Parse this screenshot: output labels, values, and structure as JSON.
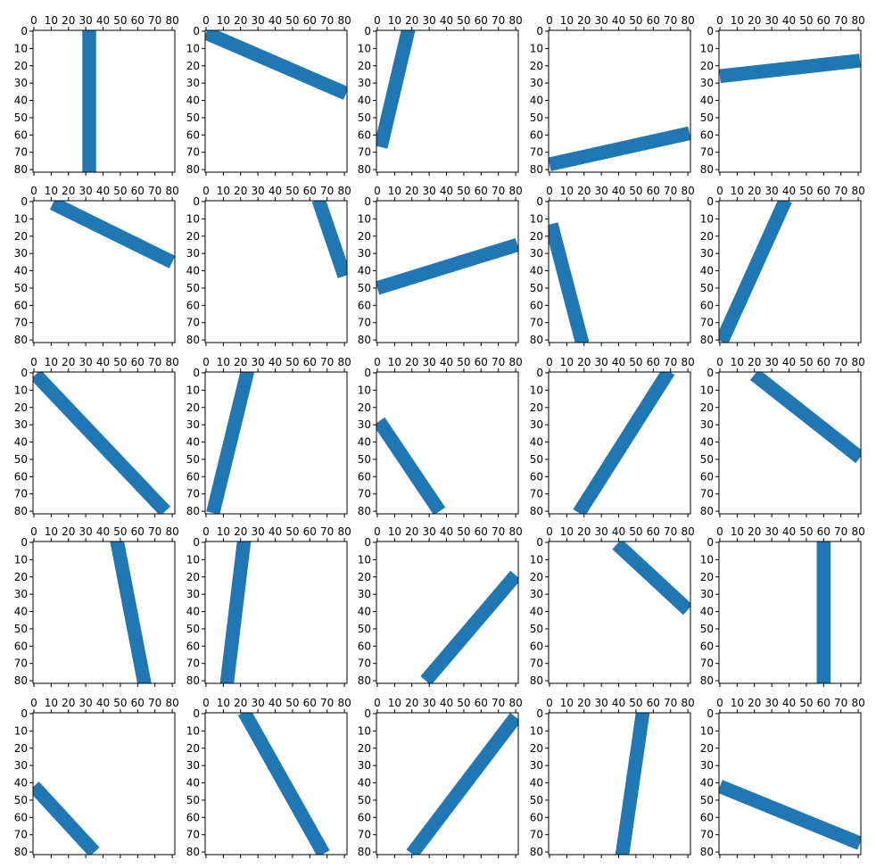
{
  "chart_data": {
    "type": "image-grid",
    "rows": 5,
    "cols": 5,
    "ticks": [
      "0",
      "10",
      "20",
      "30",
      "40",
      "50",
      "60",
      "70",
      "80"
    ],
    "tick_values": [
      0,
      10,
      20,
      30,
      40,
      50,
      60,
      70,
      80
    ],
    "xlim": [
      -0.5,
      81.5
    ],
    "ylim": [
      81.5,
      -0.5
    ],
    "x_axis_position": "top",
    "bottom_tick_labels": false,
    "grid": false,
    "line_color": "#1f77b4",
    "stroke_width_data_units": 8,
    "panels": [
      {
        "row": 0,
        "col": 0,
        "p1": [
          32,
          -1
        ],
        "p2": [
          32,
          82
        ]
      },
      {
        "row": 0,
        "col": 1,
        "p1": [
          0,
          1
        ],
        "p2": [
          81,
          36
        ]
      },
      {
        "row": 0,
        "col": 2,
        "p1": [
          18,
          -1
        ],
        "p2": [
          2,
          67
        ]
      },
      {
        "row": 0,
        "col": 3,
        "p1": [
          0,
          77
        ],
        "p2": [
          81,
          59
        ]
      },
      {
        "row": 0,
        "col": 4,
        "p1": [
          0,
          26
        ],
        "p2": [
          81,
          17
        ]
      },
      {
        "row": 1,
        "col": 0,
        "p1": [
          11,
          1
        ],
        "p2": [
          80,
          35
        ]
      },
      {
        "row": 1,
        "col": 1,
        "p1": [
          65,
          -1
        ],
        "p2": [
          80,
          43
        ]
      },
      {
        "row": 1,
        "col": 2,
        "p1": [
          0,
          50
        ],
        "p2": [
          81,
          25
        ]
      },
      {
        "row": 1,
        "col": 3,
        "p1": [
          1,
          13
        ],
        "p2": [
          19,
          82
        ]
      },
      {
        "row": 1,
        "col": 4,
        "p1": [
          38,
          -1
        ],
        "p2": [
          1,
          81
        ]
      },
      {
        "row": 2,
        "col": 0,
        "p1": [
          1,
          1
        ],
        "p2": [
          76,
          80
        ]
      },
      {
        "row": 2,
        "col": 1,
        "p1": [
          24,
          -1
        ],
        "p2": [
          4,
          81
        ]
      },
      {
        "row": 2,
        "col": 2,
        "p1": [
          1,
          28
        ],
        "p2": [
          36,
          80
        ]
      },
      {
        "row": 2,
        "col": 3,
        "p1": [
          69,
          -1
        ],
        "p2": [
          17,
          81
        ]
      },
      {
        "row": 2,
        "col": 4,
        "p1": [
          20,
          1
        ],
        "p2": [
          81,
          49
        ]
      },
      {
        "row": 3,
        "col": 0,
        "p1": [
          48,
          -1
        ],
        "p2": [
          64,
          82
        ]
      },
      {
        "row": 3,
        "col": 1,
        "p1": [
          22,
          -1
        ],
        "p2": [
          12,
          82
        ]
      },
      {
        "row": 3,
        "col": 2,
        "p1": [
          80,
          19
        ],
        "p2": [
          28,
          80
        ]
      },
      {
        "row": 3,
        "col": 3,
        "p1": [
          39,
          1
        ],
        "p2": [
          80,
          39
        ]
      },
      {
        "row": 3,
        "col": 4,
        "p1": [
          60,
          -1
        ],
        "p2": [
          60,
          82
        ]
      },
      {
        "row": 4,
        "col": 0,
        "p1": [
          0,
          42
        ],
        "p2": [
          35,
          80
        ]
      },
      {
        "row": 4,
        "col": 1,
        "p1": [
          22,
          -1
        ],
        "p2": [
          68,
          81
        ]
      },
      {
        "row": 4,
        "col": 2,
        "p1": [
          80,
          2
        ],
        "p2": [
          20,
          81
        ]
      },
      {
        "row": 4,
        "col": 3,
        "p1": [
          54,
          -1
        ],
        "p2": [
          42,
          82
        ]
      },
      {
        "row": 4,
        "col": 4,
        "p1": [
          0,
          42
        ],
        "p2": [
          81,
          75
        ]
      }
    ]
  }
}
